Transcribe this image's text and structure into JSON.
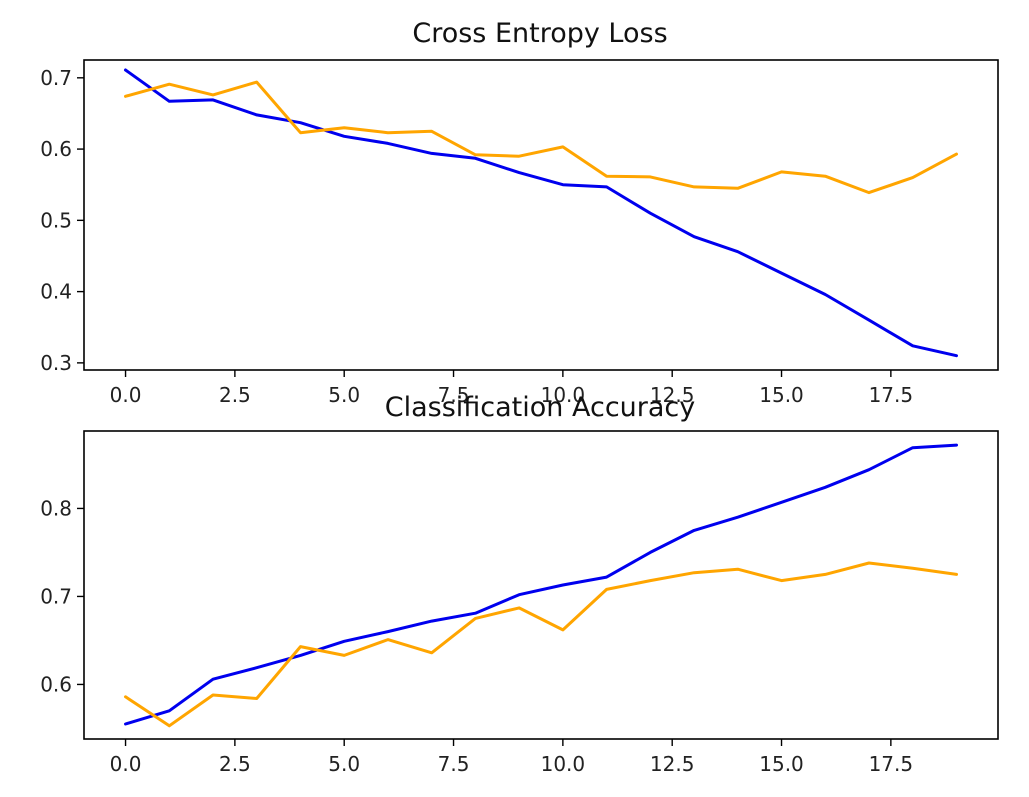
{
  "chart_data": [
    {
      "type": "line",
      "title": "Cross Entropy Loss",
      "xlabel": "",
      "ylabel": "",
      "xlim": [
        -0.95,
        19.95
      ],
      "ylim": [
        0.29,
        0.725
      ],
      "xticks": [
        0.0,
        2.5,
        5.0,
        7.5,
        10.0,
        12.5,
        15.0,
        17.5
      ],
      "xtick_labels": [
        "0.0",
        "2.5",
        "5.0",
        "7.5",
        "10.0",
        "12.5",
        "15.0",
        "17.5"
      ],
      "yticks": [
        0.3,
        0.4,
        0.5,
        0.6,
        0.7
      ],
      "ytick_labels": [
        "0.3",
        "0.4",
        "0.5",
        "0.6",
        "0.7"
      ],
      "grid": false,
      "x": [
        0,
        1,
        2,
        3,
        4,
        5,
        6,
        7,
        8,
        9,
        10,
        11,
        12,
        13,
        14,
        15,
        16,
        17,
        18,
        19
      ],
      "series": [
        {
          "color": "#0000ee",
          "values": [
            0.711,
            0.667,
            0.669,
            0.648,
            0.637,
            0.618,
            0.608,
            0.594,
            0.587,
            0.567,
            0.55,
            0.547,
            0.51,
            0.477,
            0.456,
            0.426,
            0.396,
            0.36,
            0.324,
            0.31
          ]
        },
        {
          "color": "#ffa500",
          "values": [
            0.674,
            0.691,
            0.676,
            0.694,
            0.623,
            0.63,
            0.623,
            0.625,
            0.592,
            0.59,
            0.603,
            0.562,
            0.561,
            0.547,
            0.545,
            0.568,
            0.562,
            0.539,
            0.56,
            0.593
          ]
        }
      ]
    },
    {
      "type": "line",
      "title": "Classification Accuracy",
      "xlabel": "",
      "ylabel": "",
      "xlim": [
        -0.95,
        19.95
      ],
      "ylim": [
        0.538,
        0.888
      ],
      "xticks": [
        0.0,
        2.5,
        5.0,
        7.5,
        10.0,
        12.5,
        15.0,
        17.5
      ],
      "xtick_labels": [
        "0.0",
        "2.5",
        "5.0",
        "7.5",
        "10.0",
        "12.5",
        "15.0",
        "17.5"
      ],
      "yticks": [
        0.6,
        0.7,
        0.8
      ],
      "ytick_labels": [
        "0.6",
        "0.7",
        "0.8"
      ],
      "grid": false,
      "x": [
        0,
        1,
        2,
        3,
        4,
        5,
        6,
        7,
        8,
        9,
        10,
        11,
        12,
        13,
        14,
        15,
        16,
        17,
        18,
        19
      ],
      "series": [
        {
          "color": "#0000ee",
          "values": [
            0.555,
            0.57,
            0.606,
            0.619,
            0.633,
            0.649,
            0.66,
            0.672,
            0.681,
            0.702,
            0.713,
            0.722,
            0.75,
            0.775,
            0.79,
            0.807,
            0.824,
            0.844,
            0.869,
            0.872
          ]
        },
        {
          "color": "#ffa500",
          "values": [
            0.586,
            0.553,
            0.588,
            0.584,
            0.643,
            0.633,
            0.651,
            0.636,
            0.675,
            0.687,
            0.662,
            0.708,
            0.718,
            0.727,
            0.731,
            0.718,
            0.725,
            0.738,
            0.732,
            0.725
          ]
        }
      ]
    }
  ]
}
